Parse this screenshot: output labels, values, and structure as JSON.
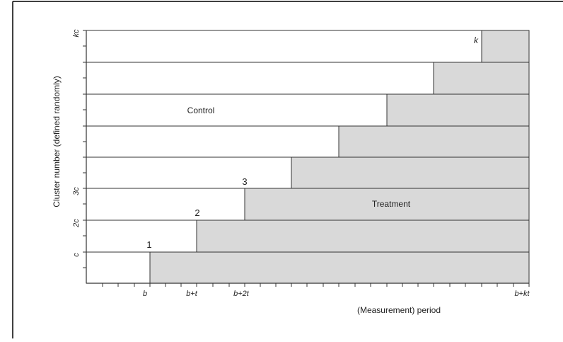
{
  "diagram": {
    "y_axis_label": "Cluster number (defined randomly)",
    "x_axis_label": "(Measurement) period",
    "y_ticks": [
      "c",
      "2c",
      "3c",
      "kc"
    ],
    "x_ticks": [
      "b",
      "b+t",
      "b+2t",
      "b+kt"
    ],
    "region_labels": {
      "control": "Control",
      "treatment": "Treatment"
    },
    "step_labels": [
      "1",
      "2",
      "3",
      "k"
    ],
    "colors": {
      "control": "#ffffff",
      "treatment": "#d9d9d9",
      "line": "#333333"
    }
  }
}
